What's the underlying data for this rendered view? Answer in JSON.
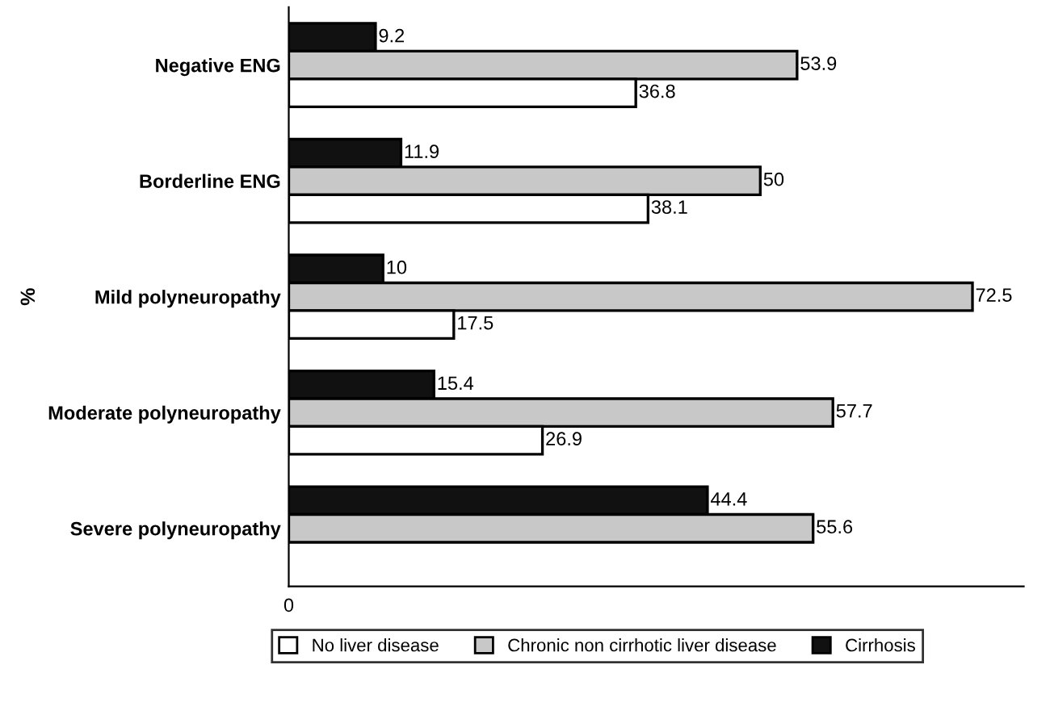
{
  "chart_data": {
    "type": "bar",
    "orientation": "horizontal",
    "ylabel": "%",
    "categories": [
      "Negative ENG",
      "Borderline ENG",
      "Mild polyneuropathy",
      "Moderate polyneuropathy",
      "Severe polyneuropathy"
    ],
    "series": [
      {
        "name": "Cirrhosis",
        "color": "#111111",
        "values": [
          9.2,
          11.9,
          10,
          15.4,
          44.4
        ]
      },
      {
        "name": "Chronic non cirrhotic liver disease",
        "color": "#c8c8c8",
        "values": [
          53.9,
          50,
          72.5,
          57.7,
          55.6
        ]
      },
      {
        "name": "No liver disease",
        "color": "#ffffff",
        "values": [
          36.8,
          38.1,
          17.5,
          26.9,
          null
        ]
      }
    ],
    "annotations": [
      "0"
    ],
    "data_labels": true,
    "legend": "bottom",
    "grid": false
  }
}
